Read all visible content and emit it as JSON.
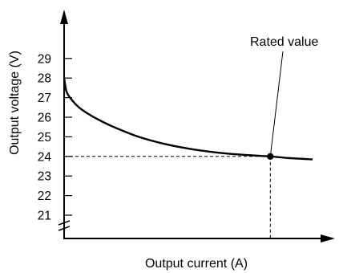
{
  "chart_data": {
    "type": "line",
    "xlabel": "Output current (A)",
    "ylabel": "Output voltage (V)",
    "y_ticks": [
      21,
      22,
      23,
      24,
      25,
      26,
      27,
      28,
      29
    ],
    "y_axis_break": true,
    "grid": false,
    "series": [
      {
        "points": [
          [
            0.0,
            28.0
          ],
          [
            0.01,
            27.3
          ],
          [
            0.03,
            26.9
          ],
          [
            0.06,
            26.5
          ],
          [
            0.1,
            26.15
          ],
          [
            0.15,
            25.8
          ],
          [
            0.2,
            25.5
          ],
          [
            0.3,
            25.0
          ],
          [
            0.4,
            24.65
          ],
          [
            0.5,
            24.4
          ],
          [
            0.6,
            24.22
          ],
          [
            0.7,
            24.1
          ],
          [
            0.8,
            24.02
          ],
          [
            0.83,
            24.0
          ],
          [
            0.9,
            23.92
          ],
          [
            1.0,
            23.85
          ]
        ]
      }
    ],
    "annotation": {
      "text": "Rated value",
      "x": 0.83,
      "y": 24.0
    }
  }
}
